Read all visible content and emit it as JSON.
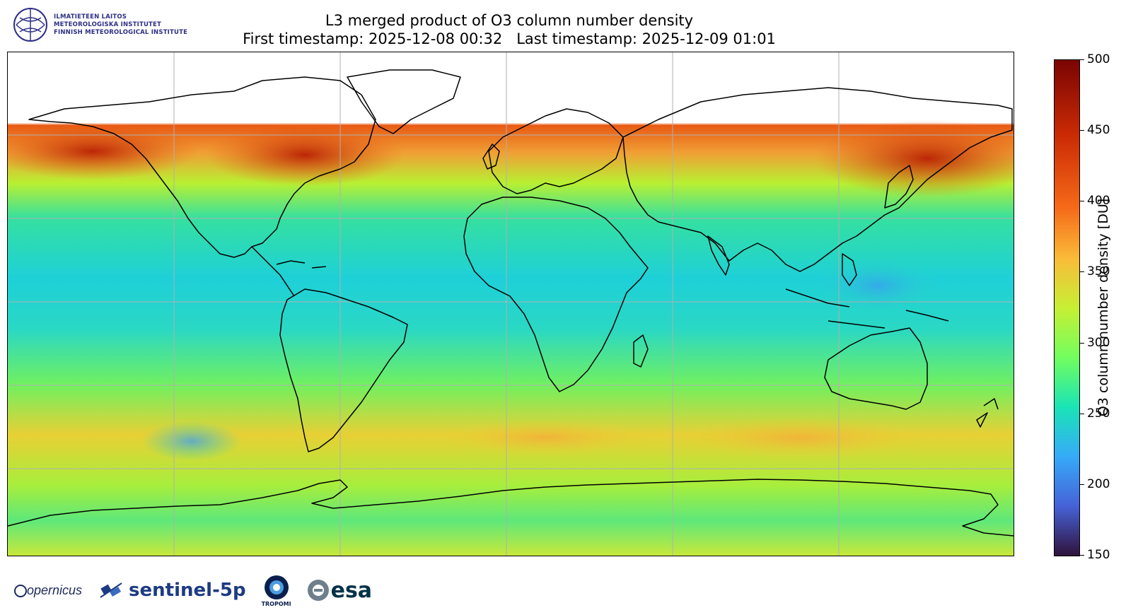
{
  "institute": {
    "line1": "ILMATIETEEN LAITOS",
    "line2": "METEOROLOGISKA INSTITUTET",
    "line3": "FINNISH METEOROLOGICAL INSTITUTE"
  },
  "title": {
    "line1": "L3 merged product of O3 column number density",
    "line2": "First timestamp: 2025-12-08 00:32   Last timestamp: 2025-12-09 01:01"
  },
  "colorbar": {
    "label": "O3 column number density [DU]",
    "min": 150,
    "max": 500,
    "ticks": [
      "500",
      "450",
      "400",
      "350",
      "300",
      "250",
      "200",
      "150"
    ],
    "colormap": "turbo"
  },
  "colors": {
    "high": "#8b0a05",
    "mid_high": "#e04a10",
    "mid": "#a8f03a",
    "mid_low": "#28d8c0",
    "low": "#30123b",
    "grid": "#b0b0b0",
    "coastline": "#000000"
  },
  "logos": {
    "copernicus": "opernicus",
    "sentinel": "sentinel-5p",
    "tropomi": "TROPOMI",
    "esa": "esa"
  }
}
